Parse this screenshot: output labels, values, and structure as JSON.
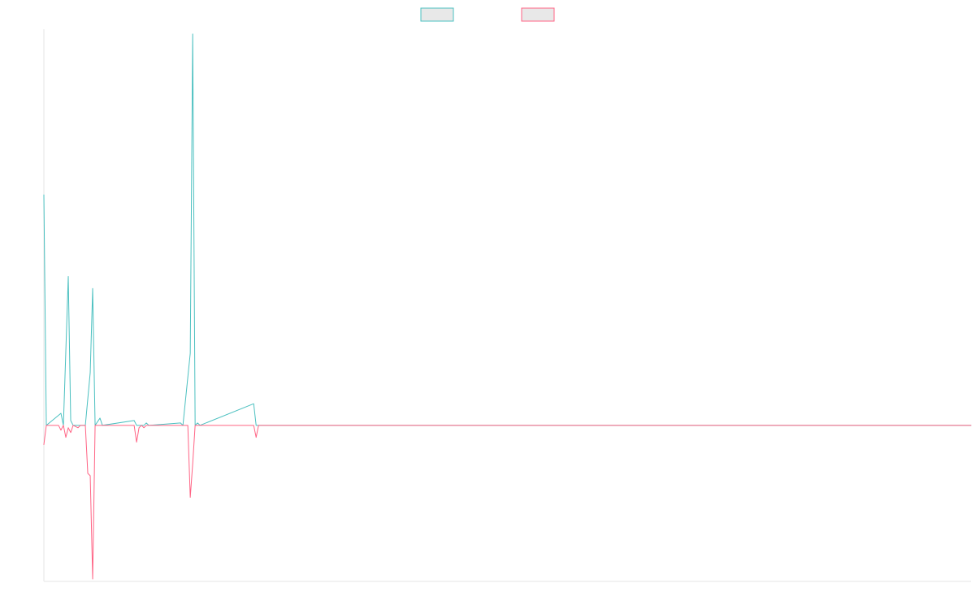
{
  "chart_data": {
    "type": "line",
    "title": "",
    "xlabel": "",
    "ylabel": "",
    "grid": false,
    "legend_position": "top-center",
    "x_range": [
      0,
      380
    ],
    "y_range": [
      -65,
      165
    ],
    "baseline": 0,
    "series": [
      {
        "color": "#4bc0c0",
        "legend_fill": "#e8e8e8",
        "points": [
          [
            0,
            96
          ],
          [
            1,
            0
          ],
          [
            7,
            5
          ],
          [
            8,
            0
          ],
          [
            10,
            62
          ],
          [
            11,
            2
          ],
          [
            12,
            0
          ],
          [
            17,
            0
          ],
          [
            19,
            22
          ],
          [
            20,
            57
          ],
          [
            21,
            0
          ],
          [
            23,
            3
          ],
          [
            24,
            0
          ],
          [
            37,
            2
          ],
          [
            38,
            0
          ],
          [
            41,
            0
          ],
          [
            42,
            1
          ],
          [
            43,
            0
          ],
          [
            56,
            1
          ],
          [
            57,
            0
          ],
          [
            60,
            30
          ],
          [
            61,
            163
          ],
          [
            62,
            0
          ],
          [
            63,
            1
          ],
          [
            64,
            0
          ],
          [
            86,
            9
          ],
          [
            87,
            0
          ],
          [
            380,
            0
          ]
        ]
      },
      {
        "color": "#ff6384",
        "legend_fill": "#e8e8e8",
        "points": [
          [
            0,
            -8
          ],
          [
            1,
            0
          ],
          [
            6,
            0
          ],
          [
            7,
            -2
          ],
          [
            8,
            0
          ],
          [
            9,
            -5
          ],
          [
            10,
            -1
          ],
          [
            11,
            -3
          ],
          [
            12,
            0
          ],
          [
            14,
            -1
          ],
          [
            15,
            0
          ],
          [
            17,
            0
          ],
          [
            18,
            -20
          ],
          [
            19,
            -21
          ],
          [
            20,
            -64
          ],
          [
            21,
            0
          ],
          [
            23,
            0
          ],
          [
            37,
            0
          ],
          [
            38,
            -7
          ],
          [
            39,
            -1
          ],
          [
            40,
            0
          ],
          [
            41,
            -1
          ],
          [
            42,
            0
          ],
          [
            59,
            0
          ],
          [
            60,
            -30
          ],
          [
            61,
            -16
          ],
          [
            62,
            0
          ],
          [
            86,
            0
          ],
          [
            87,
            -5
          ],
          [
            88,
            0
          ],
          [
            380,
            0
          ]
        ]
      }
    ]
  }
}
